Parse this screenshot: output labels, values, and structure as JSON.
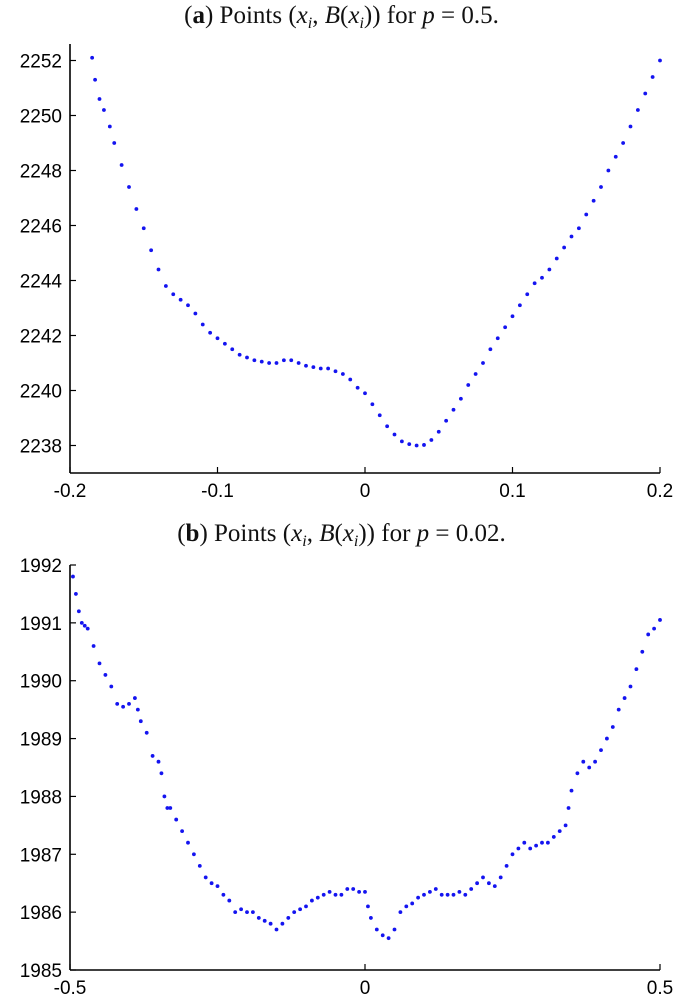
{
  "chart_data": [
    {
      "type": "scatter",
      "title": {
        "prefix": "(",
        "letter": "a",
        "suffix": ") Points (",
        "x_sym": "x",
        "x_sub": "i",
        "comma": ", ",
        "b_sym": "B",
        "open_paren": "(",
        "close_parens": ")) for ",
        "p_sym": "p",
        "value": " = 0.5."
      },
      "xlim": [
        -0.2,
        0.2
      ],
      "ylim": [
        2237,
        2252.6
      ],
      "x_ticks": [
        "-0.2",
        "-0.1",
        "0",
        "0.1",
        "0.2"
      ],
      "x_tick_values": [
        -0.2,
        -0.1,
        0,
        0.1,
        0.2
      ],
      "y_ticks": [
        "2238",
        "2240",
        "2242",
        "2244",
        "2246",
        "2248",
        "2250",
        "2252"
      ],
      "y_tick_values": [
        2238,
        2240,
        2242,
        2244,
        2246,
        2248,
        2250,
        2252
      ],
      "grid": false,
      "color": "#1414f0",
      "points": [
        [
          -0.185,
          2252.1
        ],
        [
          -0.183,
          2251.3
        ],
        [
          -0.18,
          2250.6
        ],
        [
          -0.177,
          2250.2
        ],
        [
          -0.173,
          2249.6
        ],
        [
          -0.17,
          2249.0
        ],
        [
          -0.165,
          2248.2
        ],
        [
          -0.16,
          2247.4
        ],
        [
          -0.155,
          2246.6
        ],
        [
          -0.15,
          2245.9
        ],
        [
          -0.145,
          2245.1
        ],
        [
          -0.14,
          2244.4
        ],
        [
          -0.135,
          2243.8
        ],
        [
          -0.13,
          2243.5
        ],
        [
          -0.125,
          2243.3
        ],
        [
          -0.12,
          2243.1
        ],
        [
          -0.115,
          2242.8
        ],
        [
          -0.11,
          2242.4
        ],
        [
          -0.105,
          2242.1
        ],
        [
          -0.1,
          2241.9
        ],
        [
          -0.095,
          2241.7
        ],
        [
          -0.09,
          2241.5
        ],
        [
          -0.085,
          2241.3
        ],
        [
          -0.08,
          2241.2
        ],
        [
          -0.075,
          2241.1
        ],
        [
          -0.07,
          2241.05
        ],
        [
          -0.065,
          2241.0
        ],
        [
          -0.06,
          2241.0
        ],
        [
          -0.055,
          2241.1
        ],
        [
          -0.05,
          2241.1
        ],
        [
          -0.045,
          2241.0
        ],
        [
          -0.04,
          2240.9
        ],
        [
          -0.035,
          2240.85
        ],
        [
          -0.03,
          2240.8
        ],
        [
          -0.025,
          2240.8
        ],
        [
          -0.02,
          2240.7
        ],
        [
          -0.015,
          2240.6
        ],
        [
          -0.01,
          2240.4
        ],
        [
          -0.005,
          2240.1
        ],
        [
          0.0,
          2239.9
        ],
        [
          0.005,
          2239.5
        ],
        [
          0.01,
          2239.1
        ],
        [
          0.015,
          2238.7
        ],
        [
          0.02,
          2238.4
        ],
        [
          0.025,
          2238.15
        ],
        [
          0.03,
          2238.05
        ],
        [
          0.035,
          2238.0
        ],
        [
          0.04,
          2238.02
        ],
        [
          0.045,
          2238.2
        ],
        [
          0.05,
          2238.5
        ],
        [
          0.055,
          2238.9
        ],
        [
          0.06,
          2239.3
        ],
        [
          0.065,
          2239.7
        ],
        [
          0.07,
          2240.2
        ],
        [
          0.075,
          2240.6
        ],
        [
          0.08,
          2241.0
        ],
        [
          0.085,
          2241.5
        ],
        [
          0.09,
          2241.9
        ],
        [
          0.095,
          2242.3
        ],
        [
          0.1,
          2242.7
        ],
        [
          0.105,
          2243.1
        ],
        [
          0.11,
          2243.5
        ],
        [
          0.115,
          2243.9
        ],
        [
          0.12,
          2244.1
        ],
        [
          0.125,
          2244.4
        ],
        [
          0.13,
          2244.8
        ],
        [
          0.135,
          2245.2
        ],
        [
          0.14,
          2245.6
        ],
        [
          0.145,
          2245.9
        ],
        [
          0.15,
          2246.4
        ],
        [
          0.155,
          2246.9
        ],
        [
          0.16,
          2247.4
        ],
        [
          0.165,
          2248.0
        ],
        [
          0.17,
          2248.5
        ],
        [
          0.175,
          2249.0
        ],
        [
          0.18,
          2249.6
        ],
        [
          0.185,
          2250.2
        ],
        [
          0.19,
          2250.8
        ],
        [
          0.195,
          2251.4
        ],
        [
          0.2,
          2252.0
        ]
      ]
    },
    {
      "type": "scatter",
      "title": {
        "prefix": "(",
        "letter": "b",
        "suffix": ") Points (",
        "x_sym": "x",
        "x_sub": "i",
        "comma": ", ",
        "b_sym": "B",
        "open_paren": "(",
        "close_parens": ")) for ",
        "p_sym": "p",
        "value": " = 0.02."
      },
      "xlim": [
        -0.5,
        0.5
      ],
      "ylim": [
        1985,
        1992
      ],
      "x_ticks": [
        "-0.5",
        "0",
        "0.5"
      ],
      "x_tick_values": [
        -0.5,
        0,
        0.5
      ],
      "y_ticks": [
        "1985",
        "1986",
        "1987",
        "1988",
        "1989",
        "1990",
        "1991",
        "1992"
      ],
      "y_tick_values": [
        1985,
        1986,
        1987,
        1988,
        1989,
        1990,
        1991,
        1992
      ],
      "grid": false,
      "color": "#1414f0",
      "points": [
        [
          -0.495,
          1991.8
        ],
        [
          -0.49,
          1991.5
        ],
        [
          -0.485,
          1991.2
        ],
        [
          -0.48,
          1991.0
        ],
        [
          -0.475,
          1990.95
        ],
        [
          -0.47,
          1990.9
        ],
        [
          -0.46,
          1990.6
        ],
        [
          -0.45,
          1990.3
        ],
        [
          -0.44,
          1990.1
        ],
        [
          -0.43,
          1989.9
        ],
        [
          -0.42,
          1989.6
        ],
        [
          -0.41,
          1989.55
        ],
        [
          -0.4,
          1989.6
        ],
        [
          -0.39,
          1989.7
        ],
        [
          -0.385,
          1989.5
        ],
        [
          -0.38,
          1989.3
        ],
        [
          -0.37,
          1989.1
        ],
        [
          -0.36,
          1988.7
        ],
        [
          -0.35,
          1988.6
        ],
        [
          -0.345,
          1988.4
        ],
        [
          -0.34,
          1988.0
        ],
        [
          -0.335,
          1987.8
        ],
        [
          -0.33,
          1987.8
        ],
        [
          -0.32,
          1987.6
        ],
        [
          -0.31,
          1987.4
        ],
        [
          -0.3,
          1987.2
        ],
        [
          -0.29,
          1987.0
        ],
        [
          -0.28,
          1986.8
        ],
        [
          -0.27,
          1986.6
        ],
        [
          -0.26,
          1986.5
        ],
        [
          -0.25,
          1986.45
        ],
        [
          -0.24,
          1986.3
        ],
        [
          -0.23,
          1986.2
        ],
        [
          -0.22,
          1986.0
        ],
        [
          -0.21,
          1986.05
        ],
        [
          -0.2,
          1986.0
        ],
        [
          -0.19,
          1986.0
        ],
        [
          -0.18,
          1985.9
        ],
        [
          -0.17,
          1985.85
        ],
        [
          -0.16,
          1985.8
        ],
        [
          -0.15,
          1985.7
        ],
        [
          -0.14,
          1985.8
        ],
        [
          -0.13,
          1985.9
        ],
        [
          -0.12,
          1986.0
        ],
        [
          -0.11,
          1986.05
        ],
        [
          -0.1,
          1986.1
        ],
        [
          -0.09,
          1986.2
        ],
        [
          -0.08,
          1986.25
        ],
        [
          -0.07,
          1986.3
        ],
        [
          -0.06,
          1986.35
        ],
        [
          -0.05,
          1986.3
        ],
        [
          -0.04,
          1986.3
        ],
        [
          -0.03,
          1986.4
        ],
        [
          -0.02,
          1986.4
        ],
        [
          -0.01,
          1986.35
        ],
        [
          0.0,
          1986.35
        ],
        [
          0.005,
          1986.1
        ],
        [
          0.01,
          1985.9
        ],
        [
          0.02,
          1985.7
        ],
        [
          0.03,
          1985.6
        ],
        [
          0.04,
          1985.55
        ],
        [
          0.05,
          1985.7
        ],
        [
          0.06,
          1986.0
        ],
        [
          0.07,
          1986.1
        ],
        [
          0.08,
          1986.15
        ],
        [
          0.09,
          1986.25
        ],
        [
          0.1,
          1986.3
        ],
        [
          0.11,
          1986.35
        ],
        [
          0.12,
          1986.4
        ],
        [
          0.13,
          1986.3
        ],
        [
          0.14,
          1986.3
        ],
        [
          0.15,
          1986.3
        ],
        [
          0.16,
          1986.35
        ],
        [
          0.17,
          1986.3
        ],
        [
          0.18,
          1986.4
        ],
        [
          0.19,
          1986.5
        ],
        [
          0.2,
          1986.6
        ],
        [
          0.21,
          1986.5
        ],
        [
          0.22,
          1986.45
        ],
        [
          0.23,
          1986.6
        ],
        [
          0.24,
          1986.8
        ],
        [
          0.25,
          1987.0
        ],
        [
          0.26,
          1987.1
        ],
        [
          0.27,
          1987.2
        ],
        [
          0.28,
          1987.1
        ],
        [
          0.29,
          1987.15
        ],
        [
          0.3,
          1987.2
        ],
        [
          0.31,
          1987.2
        ],
        [
          0.32,
          1987.3
        ],
        [
          0.33,
          1987.4
        ],
        [
          0.34,
          1987.5
        ],
        [
          0.345,
          1987.8
        ],
        [
          0.35,
          1988.1
        ],
        [
          0.36,
          1988.4
        ],
        [
          0.37,
          1988.6
        ],
        [
          0.38,
          1988.5
        ],
        [
          0.39,
          1988.6
        ],
        [
          0.4,
          1988.8
        ],
        [
          0.41,
          1989.0
        ],
        [
          0.42,
          1989.2
        ],
        [
          0.43,
          1989.5
        ],
        [
          0.44,
          1989.7
        ],
        [
          0.45,
          1989.9
        ],
        [
          0.46,
          1990.2
        ],
        [
          0.47,
          1990.5
        ],
        [
          0.48,
          1990.8
        ],
        [
          0.49,
          1990.9
        ],
        [
          0.5,
          1991.05
        ]
      ]
    }
  ]
}
